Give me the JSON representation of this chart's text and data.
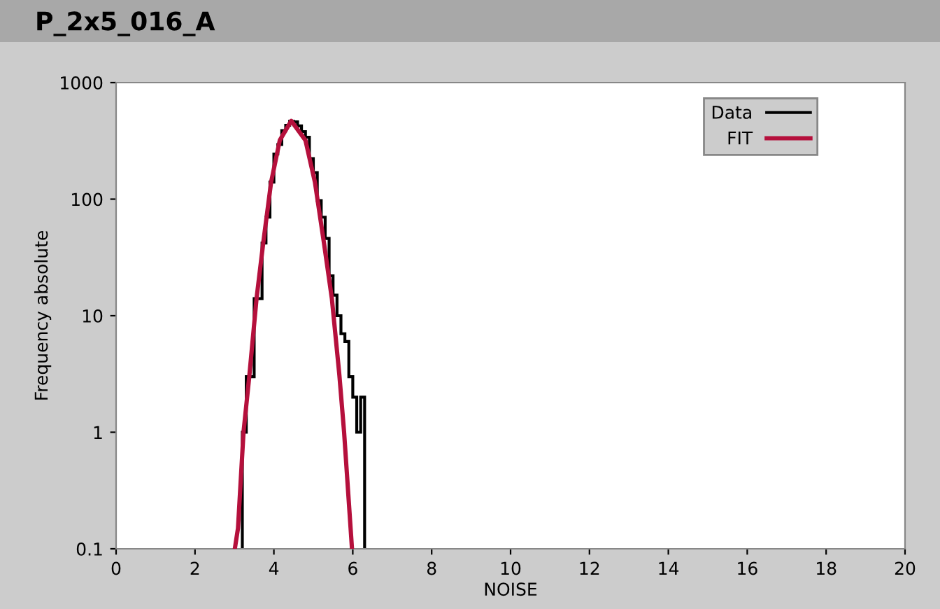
{
  "chart_data": {
    "type": "histogram",
    "title": "P_2x5_016_A",
    "xlabel": "NOISE",
    "ylabel": "Frequency absolute",
    "bins": [
      3.2,
      3.3,
      3.4,
      3.5,
      3.6,
      3.7,
      3.8,
      3.9,
      4.0,
      4.1,
      4.2,
      4.3,
      4.4,
      4.5,
      4.6,
      4.7,
      4.8,
      4.9,
      5.0,
      5.1,
      5.2,
      5.3,
      5.4,
      5.5,
      5.6,
      5.7,
      5.8,
      5.9,
      6.0,
      6.1,
      6.2,
      6.3
    ],
    "series": [
      {
        "name": "Data",
        "color": "#000000",
        "values": [
          1,
          3,
          3,
          14,
          14,
          42,
          70,
          140,
          244,
          294,
          387,
          430,
          466,
          460,
          425,
          380,
          340,
          223,
          169,
          97,
          70,
          46,
          22,
          15,
          10,
          7,
          6,
          3,
          2,
          1,
          2
        ]
      },
      {
        "name": "FIT",
        "type": "line",
        "color": "#b5103c",
        "x": [
          3.01,
          3.09,
          3.23,
          3.38,
          3.56,
          3.73,
          3.93,
          4.15,
          4.44,
          4.8,
          5.04,
          5.27,
          5.47,
          5.66,
          5.78,
          5.98
        ],
        "values": [
          0.1,
          0.15,
          1,
          3.1,
          14,
          42,
          140,
          320,
          470,
          320,
          140,
          42,
          14,
          3.1,
          1,
          0.1
        ]
      }
    ],
    "xlim": [
      0,
      20
    ],
    "xticks": [
      0,
      2,
      4,
      6,
      8,
      10,
      12,
      14,
      16,
      18,
      20
    ],
    "ylim": [
      0.1,
      1000
    ],
    "yticks": [
      0.1,
      1,
      10,
      100,
      1000
    ],
    "log": true,
    "grid": false,
    "legend": "top right"
  }
}
